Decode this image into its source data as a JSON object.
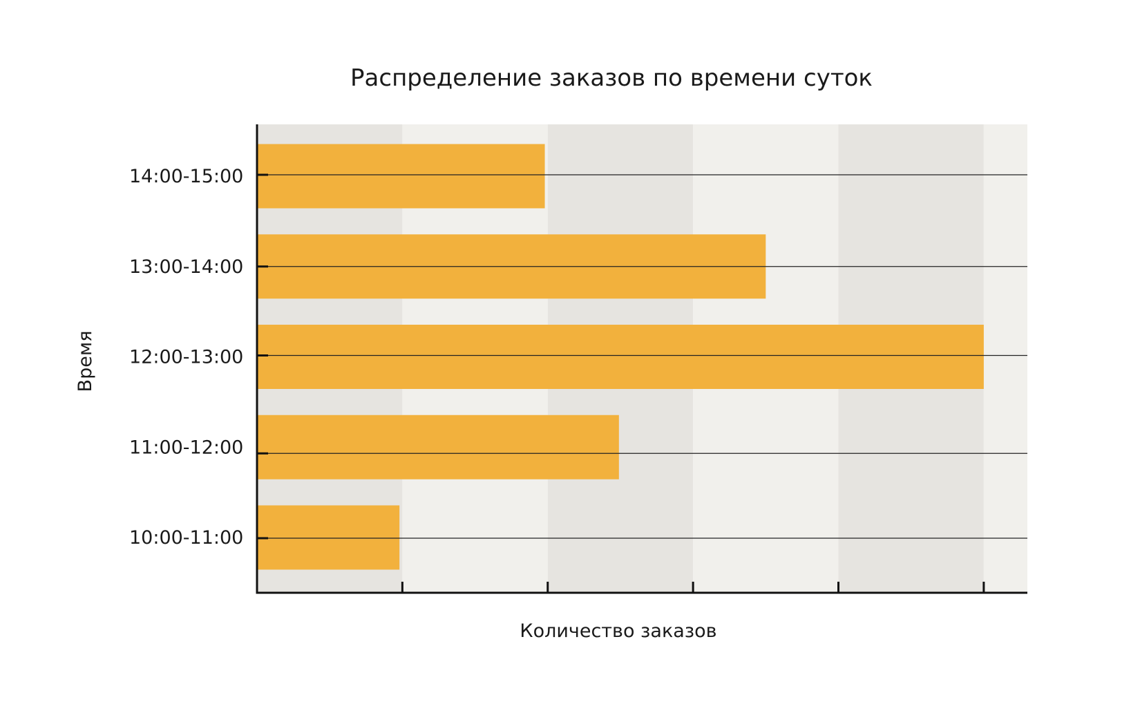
{
  "chart_data": {
    "type": "bar",
    "orientation": "horizontal",
    "title": "Распределение заказов по времени суток",
    "xlabel": "Количество заказов",
    "ylabel": "Время",
    "categories": [
      "14:00-15:00",
      "13:00-14:00",
      "12:00-13:00",
      "11:00-12:00",
      "10:00-11:00"
    ],
    "values": [
      1.98,
      3.5,
      5.0,
      2.49,
      0.98
    ],
    "xlim": [
      0,
      5.3
    ],
    "x_ticks": [
      1,
      2,
      3,
      4,
      5
    ],
    "x_tick_labels_shown": false,
    "background_bands": "alternating",
    "grid": true,
    "bar_color": "#F2B13D",
    "band_color_dark": "#E6E4E0",
    "band_color_light": "#F1F0EC"
  }
}
